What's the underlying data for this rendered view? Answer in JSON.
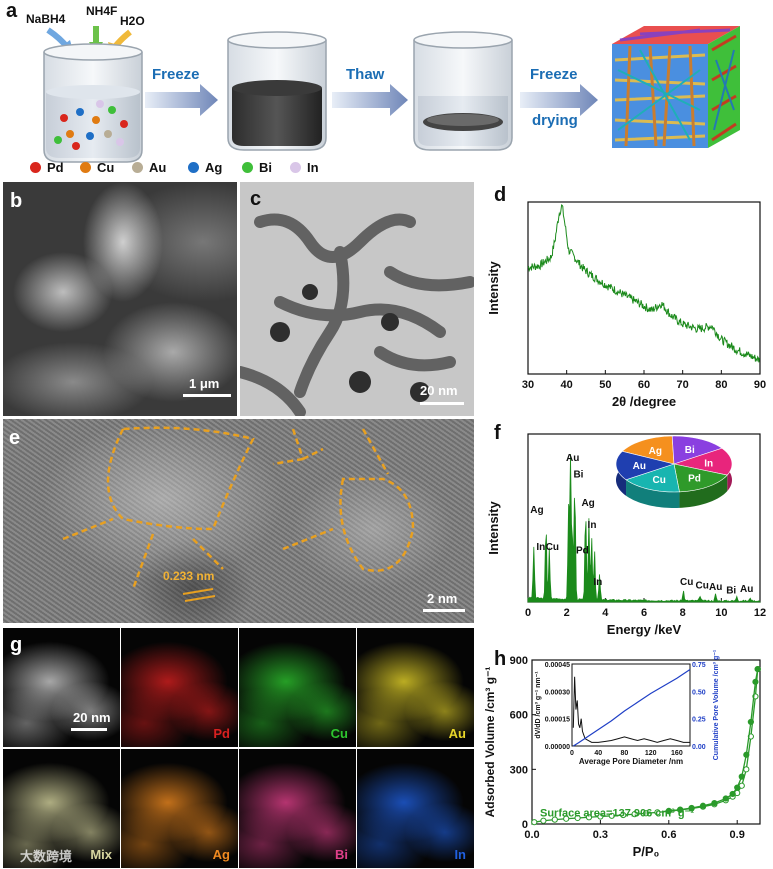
{
  "panels": {
    "a": "a",
    "b": "b",
    "c": "c",
    "d": "d",
    "e": "e",
    "f": "f",
    "g": "g",
    "h": "h"
  },
  "panel_a": {
    "reagents": {
      "r1": "NaBH4",
      "r2": "NH4F",
      "r3": "H2O"
    },
    "steps": {
      "s1": "Freeze",
      "s2": "Thaw",
      "s3_line1": "Freeze",
      "s3_line2": "drying"
    },
    "legend": [
      {
        "label": "Pd",
        "color": "#d9261c"
      },
      {
        "label": "Cu",
        "color": "#e07b12"
      },
      {
        "label": "Au",
        "color": "#b8ad95"
      },
      {
        "label": "Ag",
        "color": "#1f6fc6"
      },
      {
        "label": "Bi",
        "color": "#3fbf3a"
      },
      {
        "label": "In",
        "color": "#d9c6e8"
      }
    ]
  },
  "panel_b": {
    "scale": "1 μm"
  },
  "panel_c": {
    "scale": "20 nm"
  },
  "panel_e": {
    "scale": "2 nm",
    "lattice": "0.233 nm"
  },
  "chart_data": [
    {
      "id": "d",
      "type": "line",
      "xlabel": "2θ /degree",
      "ylabel": "Intensity",
      "xlim": [
        30,
        90
      ],
      "xticks": [
        "30",
        "40",
        "50",
        "60",
        "70",
        "80",
        "90"
      ],
      "color": "#1b8a1b",
      "x": [
        30,
        33,
        36,
        37,
        38,
        38.8,
        39.5,
        40.5,
        42,
        44,
        46,
        48,
        50,
        54,
        58,
        62,
        64.5,
        67,
        70,
        74,
        77.5,
        80,
        84,
        88,
        90
      ],
      "y": [
        0.62,
        0.63,
        0.68,
        0.78,
        0.93,
        0.98,
        0.88,
        0.72,
        0.68,
        0.62,
        0.58,
        0.55,
        0.52,
        0.47,
        0.42,
        0.37,
        0.41,
        0.34,
        0.29,
        0.26,
        0.28,
        0.2,
        0.14,
        0.1,
        0.08
      ]
    },
    {
      "id": "f",
      "type": "bar",
      "xlabel": "Energy /keV",
      "ylabel": "Intensity",
      "xlim": [
        0,
        12
      ],
      "xticks": [
        "0",
        "2",
        "4",
        "6",
        "8",
        "10",
        "12"
      ],
      "color": "#1b8a1b",
      "peaks": [
        {
          "x": 0.3,
          "h": 0.3
        },
        {
          "x": 0.93,
          "h": 0.45
        },
        {
          "x": 1.1,
          "h": 0.3
        },
        {
          "x": 2.1,
          "h": 0.55
        },
        {
          "x": 2.2,
          "h": 0.85
        },
        {
          "x": 2.3,
          "h": 0.35
        },
        {
          "x": 2.42,
          "h": 0.7
        },
        {
          "x": 2.98,
          "h": 0.55
        },
        {
          "x": 3.15,
          "h": 0.48
        },
        {
          "x": 3.29,
          "h": 0.38
        },
        {
          "x": 3.44,
          "h": 0.3
        },
        {
          "x": 3.7,
          "h": 0.15
        },
        {
          "x": 8.04,
          "h": 0.06
        },
        {
          "x": 8.9,
          "h": 0.03
        },
        {
          "x": 9.7,
          "h": 0.04
        },
        {
          "x": 10.8,
          "h": 0.03
        },
        {
          "x": 11.5,
          "h": 0.02
        }
      ],
      "peak_labels": [
        {
          "text": "Ag",
          "x": 0.15,
          "y": 0.53
        },
        {
          "text": "In",
          "x": 0.35,
          "y": 0.31
        },
        {
          "text": "Cu",
          "x": 0.95,
          "y": 0.31
        },
        {
          "text": "Au",
          "x": 2.0,
          "y": 0.84
        },
        {
          "text": "Bi",
          "x": 2.3,
          "y": 0.74
        },
        {
          "text": "Ag",
          "x": 2.8,
          "y": 0.57
        },
        {
          "text": "In",
          "x": 3.0,
          "y": 0.44
        },
        {
          "text": "Pd",
          "x": 2.5,
          "y": 0.29
        },
        {
          "text": "In",
          "x": 3.3,
          "y": 0.1
        },
        {
          "text": "Cu",
          "x": 7.9,
          "y": 0.1
        },
        {
          "text": "Cu",
          "x": 8.7,
          "y": 0.08
        },
        {
          "text": "Au",
          "x": 9.4,
          "y": 0.07
        },
        {
          "text": "Bi",
          "x": 10.2,
          "y": 0.05
        },
        {
          "text": "Au",
          "x": 11.0,
          "y": 0.06
        }
      ],
      "pie": [
        {
          "label": "Ag",
          "color": "#f5901e",
          "value": 17
        },
        {
          "label": "Bi",
          "color": "#8a3fe0",
          "value": 16
        },
        {
          "label": "In",
          "color": "#e8257c",
          "value": 16
        },
        {
          "label": "Pd",
          "color": "#2f9a2a",
          "value": 17
        },
        {
          "label": "Cu",
          "color": "#18b5b0",
          "value": 17
        },
        {
          "label": "Au",
          "color": "#1f3fb0",
          "value": 17
        }
      ]
    },
    {
      "id": "h",
      "type": "line",
      "xlabel": "P/P₀",
      "ylabel": "Adsorbed Volume /cm³ g⁻¹",
      "xlim": [
        0,
        1
      ],
      "ylim": [
        0,
        900
      ],
      "xticks": [
        "0.0",
        "0.3",
        "0.6",
        "0.9"
      ],
      "yticks": [
        "0",
        "300",
        "600",
        "900"
      ],
      "annotation": "Surface area=137.906 cm³ g⁻¹",
      "series": [
        {
          "x": [
            0.01,
            0.05,
            0.1,
            0.15,
            0.2,
            0.25,
            0.3,
            0.35,
            0.4,
            0.45,
            0.5,
            0.55,
            0.6,
            0.65,
            0.7,
            0.75,
            0.8,
            0.85,
            0.88,
            0.9,
            0.92,
            0.94,
            0.96,
            0.98,
            0.99
          ],
          "y": [
            10,
            18,
            24,
            29,
            33,
            37,
            41,
            45,
            49,
            54,
            59,
            64,
            70,
            77,
            85,
            95,
            108,
            130,
            150,
            170,
            210,
            300,
            480,
            700,
            850
          ]
        },
        {
          "x": [
            0.99,
            0.98,
            0.96,
            0.94,
            0.92,
            0.9,
            0.88,
            0.85,
            0.8,
            0.75,
            0.7,
            0.65,
            0.6
          ],
          "y": [
            850,
            780,
            560,
            380,
            260,
            200,
            165,
            140,
            115,
            100,
            88,
            79,
            72
          ]
        }
      ],
      "inset": {
        "xlabel": "Average Pore Diameter /nm",
        "ylabel_left": "dV/dD /cm³ g⁻¹ nm⁻¹",
        "ylabel_right": "Cumulative Pore Volume /cm³ g⁻¹",
        "xticks": [
          "0",
          "40",
          "80",
          "120",
          "160"
        ],
        "yticks_left": [
          "0.00000",
          "0.00015",
          "0.00030",
          "0.00045"
        ],
        "yticks_right": [
          "0.00",
          "0.25",
          "0.50",
          "0.75"
        ],
        "psd_x": [
          2,
          4,
          6,
          8,
          10,
          12,
          14,
          16,
          18,
          20,
          25,
          30,
          40,
          50,
          60,
          70,
          80,
          90,
          100,
          110,
          120,
          130,
          140,
          150,
          160,
          170,
          180
        ],
        "psd_y": [
          0.0001,
          0.00038,
          0.0002,
          0.00025,
          0.00012,
          0.0001,
          0.00015,
          8e-05,
          6e-05,
          4e-05,
          3e-05,
          2e-05,
          2e-05,
          2.5e-05,
          3e-05,
          4e-05,
          5e-05,
          4e-05,
          3e-05,
          4e-05,
          3e-05,
          2e-05,
          3e-05,
          4e-05,
          3e-05,
          2e-05,
          2e-05
        ],
        "cum_x": [
          2,
          10,
          20,
          40,
          60,
          80,
          100,
          120,
          140,
          160,
          180
        ],
        "cum_y": [
          0.0,
          0.03,
          0.07,
          0.15,
          0.23,
          0.32,
          0.4,
          0.48,
          0.55,
          0.62,
          0.7
        ]
      }
    }
  ],
  "panel_g": {
    "maps": [
      {
        "label": "",
        "color": "#cfcfcf"
      },
      {
        "label": "Pd",
        "color": "#d82020"
      },
      {
        "label": "Cu",
        "color": "#2ec42e"
      },
      {
        "label": "Au",
        "color": "#e8d62a"
      },
      {
        "label": "Mix",
        "color": "#d8d6a0"
      },
      {
        "label": "Ag",
        "color": "#f08a20"
      },
      {
        "label": "Bi",
        "color": "#e0408a"
      },
      {
        "label": "In",
        "color": "#2060e0"
      }
    ],
    "scale": "20 nm"
  },
  "watermark": "大数跨境"
}
